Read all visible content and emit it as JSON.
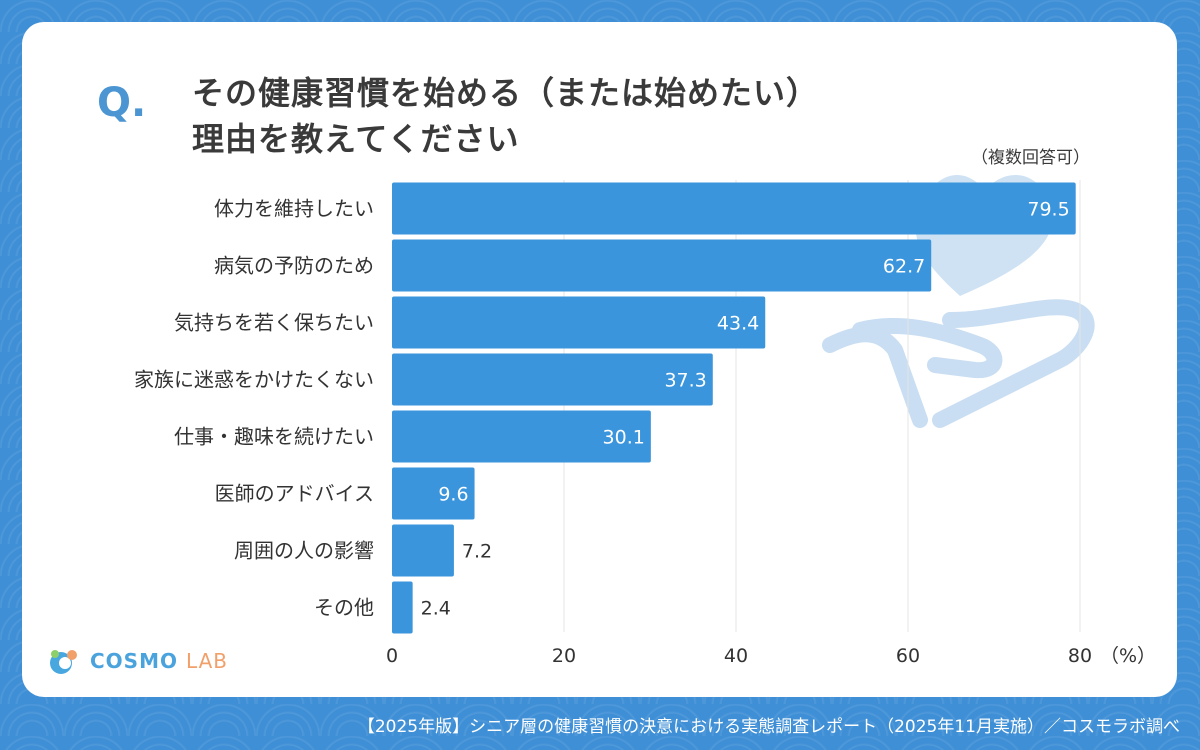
{
  "question_mark": "Q.",
  "title_line1": "その健康習慣を始める（または始めたい）",
  "title_line2": "理由を教えてください",
  "note": "（複数回答可）",
  "unit": "（%）",
  "logo": {
    "main": "COSMO",
    "sub": "LAB"
  },
  "footer": "【2025年版】シニア層の健康習慣の決意における実態調査レポート（2025年11月実施）／コスモラボ調べ",
  "colors": {
    "bar": "#3a95dc",
    "background": "#3f8fd6",
    "card": "#ffffff",
    "watermark": "#c9def2"
  },
  "chart_data": {
    "type": "bar",
    "orientation": "horizontal",
    "categories": [
      "体力を維持したい",
      "病気の予防のため",
      "気持ちを若く保ちたい",
      "家族に迷惑をかけたくない",
      "仕事・趣味を続けたい",
      "医師のアドバイス",
      "周囲の人の影響",
      "その他"
    ],
    "values": [
      79.5,
      62.7,
      43.4,
      37.3,
      30.1,
      9.6,
      7.2,
      2.4
    ],
    "value_labels": [
      "79.5",
      "62.7",
      "43.4",
      "37.3",
      "30.1",
      "9.6",
      "7.2",
      "2.4"
    ],
    "xlim": [
      0,
      80
    ],
    "xticks": [
      "0",
      "20",
      "40",
      "60",
      "80"
    ],
    "grid": true
  }
}
